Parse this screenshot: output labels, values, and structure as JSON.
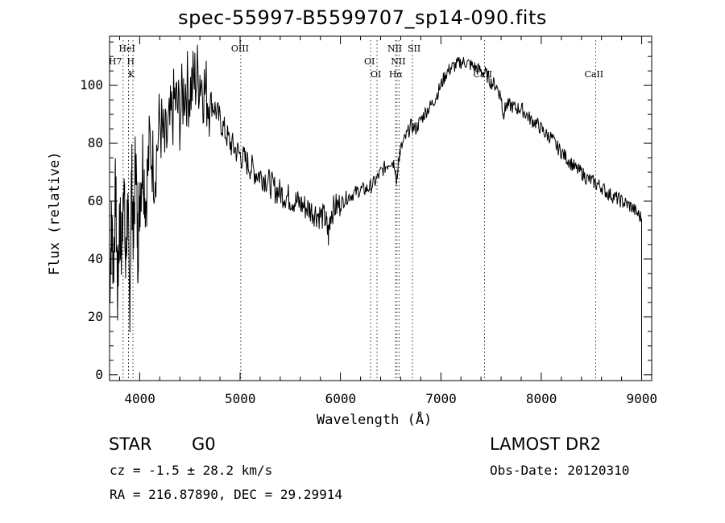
{
  "chart_data": {
    "type": "line",
    "title": "spec-55997-B5599707_sp14-090.fits",
    "xlabel": "Wavelength (Å)",
    "ylabel": "Flux (relative)",
    "xlim": [
      3700,
      9100
    ],
    "ylim": [
      -2,
      117
    ],
    "x_ticks": [
      "4000",
      "5000",
      "6000",
      "7000",
      "8000",
      "9000"
    ],
    "y_ticks": [
      "0",
      "20",
      "40",
      "60",
      "80",
      "100"
    ],
    "grid": false,
    "legend": "none",
    "series": [
      {
        "x": [
          3700,
          3720,
          3740,
          3760,
          3780,
          3800,
          3820,
          3840,
          3860,
          3880,
          3900,
          3920,
          3940,
          3960,
          3980,
          4000,
          4030,
          4060,
          4100,
          4150,
          4200,
          4250,
          4300,
          4350,
          4400,
          4450,
          4500,
          4550,
          4600,
          4650,
          4700,
          4750,
          4800,
          4850,
          4900,
          4950,
          5000,
          5050,
          5100,
          5150,
          5200,
          5250,
          5300,
          5350,
          5400,
          5450,
          5500,
          5550,
          5600,
          5650,
          5700,
          5750,
          5800,
          5850,
          5880,
          5900,
          5950,
          6000,
          6050,
          6100,
          6150,
          6200,
          6250,
          6300,
          6350,
          6400,
          6450,
          6500,
          6540,
          6563,
          6580,
          6600,
          6650,
          6700,
          6750,
          6800,
          6850,
          6900,
          6950,
          7000,
          7050,
          7100,
          7150,
          7200,
          7250,
          7300,
          7350,
          7400,
          7450,
          7500,
          7550,
          7600,
          7620,
          7650,
          7700,
          7750,
          7800,
          7850,
          7900,
          7950,
          8000,
          8050,
          8100,
          8150,
          8200,
          8250,
          8300,
          8350,
          8400,
          8450,
          8500,
          8550,
          8600,
          8650,
          8700,
          8750,
          8800,
          8850,
          8900,
          8950,
          9000
        ],
        "y": [
          30,
          52,
          38,
          65,
          28,
          55,
          40,
          72,
          35,
          60,
          22,
          70,
          45,
          80,
          42,
          62,
          75,
          60,
          80,
          70,
          88,
          78,
          85,
          95,
          90,
          100,
          98,
          102,
          104,
          98,
          95,
          92,
          88,
          84,
          80,
          78,
          76,
          74,
          72,
          70,
          69,
          68,
          66,
          64,
          63,
          62,
          61,
          60,
          59,
          58,
          57,
          56,
          55,
          54,
          48,
          56,
          58,
          59,
          61,
          62,
          63,
          64,
          64,
          65,
          67,
          70,
          72,
          74,
          73,
          66,
          75,
          78,
          82,
          86,
          85,
          88,
          91,
          93,
          96,
          100,
          104,
          106,
          107,
          108,
          108,
          107,
          106,
          105,
          104,
          101,
          100,
          96,
          90,
          93,
          93,
          92,
          92,
          90,
          88,
          87,
          85,
          83,
          82,
          79,
          77,
          75,
          73,
          71,
          70,
          68,
          67,
          66,
          65,
          63,
          62,
          61,
          60,
          59,
          58,
          56,
          54
        ]
      }
    ],
    "line_markers": [
      {
        "label": "HeI",
        "x": 3889
      },
      {
        "label": "H7",
        "x": 3835
      },
      {
        "label": "H",
        "x": 3889
      },
      {
        "label": "K",
        "x": 3933
      },
      {
        "label": "OIII",
        "x": 5007
      },
      {
        "label": "OI",
        "x": 6300
      },
      {
        "label": "OI",
        "x": 6364
      },
      {
        "label": "NII",
        "x": 6548
      },
      {
        "label": "NII",
        "x": 6583
      },
      {
        "label": "Hα",
        "x": 6563
      },
      {
        "label": "SII",
        "x": 6717
      },
      {
        "label": "CaII",
        "x": 7435
      },
      {
        "label": "CaII",
        "x": 8542
      }
    ]
  },
  "footer": {
    "class_label": "STAR",
    "subclass": "G0",
    "survey": "LAMOST DR2",
    "cz": "cz = -1.5 ± 28.2 km/s",
    "obs_date": "Obs-Date: 20120310",
    "radec": "RA = 216.87890, DEC =  29.29914"
  }
}
